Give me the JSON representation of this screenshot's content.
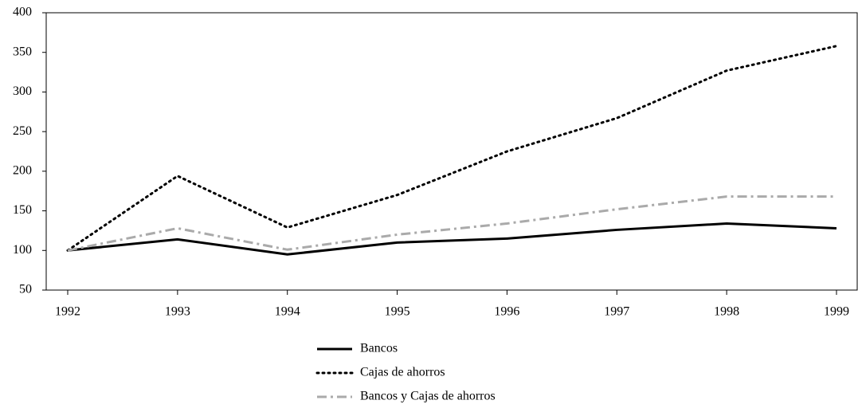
{
  "chart_data": {
    "type": "line",
    "categories": [
      "1992",
      "1993",
      "1994",
      "1995",
      "1996",
      "1997",
      "1998",
      "1999"
    ],
    "series": [
      {
        "name": "Bancos",
        "color": "#000000",
        "dash": "solid",
        "values": [
          100,
          114,
          95,
          110,
          115,
          126,
          134,
          128
        ]
      },
      {
        "name": "Cajas de ahorros",
        "color": "#000000",
        "dash": "dotted",
        "values": [
          100,
          194,
          129,
          170,
          225,
          267,
          327,
          358
        ]
      },
      {
        "name": "Bancos y Cajas de ahorros",
        "color": "#aaaaaa",
        "dash": "dashdot",
        "values": [
          100,
          128,
          101,
          120,
          134,
          152,
          168,
          168
        ]
      }
    ],
    "ylim": [
      50,
      400
    ],
    "yticks": [
      50,
      100,
      150,
      200,
      250,
      300,
      350,
      400
    ],
    "grid": false,
    "legend": "bottom"
  }
}
